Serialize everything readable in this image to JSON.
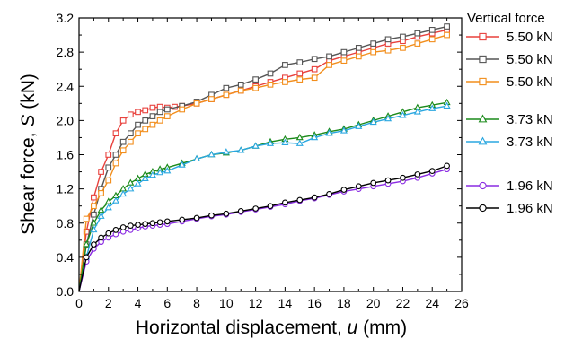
{
  "chart_data": {
    "type": "line",
    "xlabel_prefix": "Horizontal displacement, ",
    "xlabel_var": "u",
    "xlabel_unit": " (mm)",
    "ylabel_prefix": "Shear force, ",
    "ylabel_var": "S",
    "ylabel_unit": " (kN)",
    "xlim": [
      0,
      26
    ],
    "ylim": [
      0,
      3.2
    ],
    "xticks": [
      0,
      2,
      4,
      6,
      8,
      10,
      12,
      14,
      16,
      18,
      20,
      22,
      24,
      26
    ],
    "yticks": [
      0.0,
      0.4,
      0.8,
      1.2,
      1.6,
      2.0,
      2.4,
      2.8,
      3.2
    ],
    "ytick_labels": [
      "0.0",
      "0.4",
      "0.8",
      "1.2",
      "1.6",
      "2.0",
      "2.4",
      "2.8",
      "3.2"
    ],
    "legend_title": "Vertical force",
    "legend_placement": "right",
    "grid": false,
    "series": [
      {
        "name": "5.50 kN",
        "color": "#e8403c",
        "marker": "square",
        "points": [
          [
            0,
            0
          ],
          [
            0.5,
            0.7
          ],
          [
            1.0,
            1.1
          ],
          [
            1.5,
            1.4
          ],
          [
            2.0,
            1.6
          ],
          [
            2.5,
            1.85
          ],
          [
            3.0,
            2.0
          ],
          [
            3.5,
            2.07
          ],
          [
            4.0,
            2.1
          ],
          [
            4.5,
            2.12
          ],
          [
            5.0,
            2.15
          ],
          [
            5.5,
            2.16
          ],
          [
            6.0,
            2.15
          ],
          [
            6.5,
            2.16
          ],
          [
            7.0,
            2.17
          ],
          [
            8.0,
            2.2
          ],
          [
            9.0,
            2.25
          ],
          [
            10.0,
            2.3
          ],
          [
            11.0,
            2.35
          ],
          [
            12.0,
            2.4
          ],
          [
            13.0,
            2.45
          ],
          [
            14.0,
            2.5
          ],
          [
            15.0,
            2.55
          ],
          [
            16.0,
            2.6
          ],
          [
            17.0,
            2.7
          ],
          [
            18.0,
            2.75
          ],
          [
            19.0,
            2.8
          ],
          [
            20.0,
            2.85
          ],
          [
            21.0,
            2.9
          ],
          [
            22.0,
            2.93
          ],
          [
            23.0,
            2.98
          ],
          [
            24.0,
            3.02
          ],
          [
            25.0,
            3.06
          ]
        ]
      },
      {
        "name": "5.50 kN",
        "color": "#555555",
        "marker": "square",
        "points": [
          [
            0,
            0
          ],
          [
            0.5,
            0.55
          ],
          [
            1.0,
            0.9
          ],
          [
            1.5,
            1.2
          ],
          [
            2.0,
            1.45
          ],
          [
            2.5,
            1.6
          ],
          [
            3.0,
            1.75
          ],
          [
            3.5,
            1.85
          ],
          [
            4.0,
            1.95
          ],
          [
            4.5,
            2.0
          ],
          [
            5.0,
            2.05
          ],
          [
            5.5,
            2.1
          ],
          [
            6.0,
            2.13
          ],
          [
            7.0,
            2.17
          ],
          [
            8.0,
            2.22
          ],
          [
            9.0,
            2.3
          ],
          [
            10.0,
            2.38
          ],
          [
            11.0,
            2.42
          ],
          [
            12.0,
            2.48
          ],
          [
            13.0,
            2.55
          ],
          [
            14.0,
            2.65
          ],
          [
            15.0,
            2.68
          ],
          [
            16.0,
            2.72
          ],
          [
            17.0,
            2.75
          ],
          [
            18.0,
            2.8
          ],
          [
            19.0,
            2.85
          ],
          [
            20.0,
            2.9
          ],
          [
            21.0,
            2.95
          ],
          [
            22.0,
            2.98
          ],
          [
            23.0,
            3.02
          ],
          [
            24.0,
            3.06
          ],
          [
            25.0,
            3.1
          ]
        ]
      },
      {
        "name": "5.50 kN",
        "color": "#f28e1c",
        "marker": "square",
        "points": [
          [
            0,
            0
          ],
          [
            0.5,
            0.85
          ],
          [
            1.0,
            1.0
          ],
          [
            1.5,
            1.15
          ],
          [
            2.0,
            1.3
          ],
          [
            2.5,
            1.5
          ],
          [
            3.0,
            1.65
          ],
          [
            3.5,
            1.75
          ],
          [
            4.0,
            1.85
          ],
          [
            4.5,
            1.9
          ],
          [
            5.0,
            1.95
          ],
          [
            5.5,
            2.0
          ],
          [
            6.0,
            2.05
          ],
          [
            7.0,
            2.13
          ],
          [
            8.0,
            2.2
          ],
          [
            9.0,
            2.25
          ],
          [
            10.0,
            2.3
          ],
          [
            11.0,
            2.35
          ],
          [
            12.0,
            2.38
          ],
          [
            13.0,
            2.42
          ],
          [
            14.0,
            2.45
          ],
          [
            15.0,
            2.48
          ],
          [
            16.0,
            2.5
          ],
          [
            17.0,
            2.65
          ],
          [
            18.0,
            2.7
          ],
          [
            19.0,
            2.75
          ],
          [
            20.0,
            2.8
          ],
          [
            21.0,
            2.82
          ],
          [
            22.0,
            2.85
          ],
          [
            23.0,
            2.9
          ],
          [
            24.0,
            2.95
          ],
          [
            25.0,
            3.0
          ]
        ]
      },
      {
        "name": "3.73 kN",
        "color": "#1a8a1a",
        "marker": "triangle",
        "points": [
          [
            0,
            0
          ],
          [
            0.5,
            0.55
          ],
          [
            1.0,
            0.8
          ],
          [
            1.5,
            0.95
          ],
          [
            2.0,
            1.05
          ],
          [
            2.5,
            1.12
          ],
          [
            3.0,
            1.2
          ],
          [
            3.5,
            1.27
          ],
          [
            4.0,
            1.32
          ],
          [
            4.5,
            1.37
          ],
          [
            5.0,
            1.4
          ],
          [
            5.5,
            1.43
          ],
          [
            6.0,
            1.45
          ],
          [
            7.0,
            1.5
          ],
          [
            8.0,
            1.55
          ],
          [
            9.0,
            1.6
          ],
          [
            10.0,
            1.62
          ],
          [
            11.0,
            1.65
          ],
          [
            12.0,
            1.7
          ],
          [
            13.0,
            1.75
          ],
          [
            14.0,
            1.78
          ],
          [
            15.0,
            1.8
          ],
          [
            16.0,
            1.83
          ],
          [
            17.0,
            1.87
          ],
          [
            18.0,
            1.9
          ],
          [
            19.0,
            1.95
          ],
          [
            20.0,
            2.0
          ],
          [
            21.0,
            2.05
          ],
          [
            22.0,
            2.1
          ],
          [
            23.0,
            2.15
          ],
          [
            24.0,
            2.18
          ],
          [
            25.0,
            2.21
          ]
        ]
      },
      {
        "name": "3.73 kN",
        "color": "#2aa7e0",
        "marker": "triangle",
        "points": [
          [
            0,
            0
          ],
          [
            0.5,
            0.4
          ],
          [
            1.0,
            0.72
          ],
          [
            1.5,
            0.88
          ],
          [
            2.0,
            0.98
          ],
          [
            2.5,
            1.06
          ],
          [
            3.0,
            1.14
          ],
          [
            3.5,
            1.2
          ],
          [
            4.0,
            1.26
          ],
          [
            4.5,
            1.32
          ],
          [
            5.0,
            1.36
          ],
          [
            5.5,
            1.39
          ],
          [
            6.0,
            1.41
          ],
          [
            7.0,
            1.48
          ],
          [
            8.0,
            1.55
          ],
          [
            9.0,
            1.6
          ],
          [
            10.0,
            1.63
          ],
          [
            11.0,
            1.65
          ],
          [
            12.0,
            1.7
          ],
          [
            13.0,
            1.73
          ],
          [
            14.0,
            1.74
          ],
          [
            15.0,
            1.73
          ],
          [
            16.0,
            1.8
          ],
          [
            17.0,
            1.85
          ],
          [
            18.0,
            1.88
          ],
          [
            19.0,
            1.93
          ],
          [
            20.0,
            1.98
          ],
          [
            21.0,
            2.02
          ],
          [
            22.0,
            2.06
          ],
          [
            23.0,
            2.1
          ],
          [
            24.0,
            2.14
          ],
          [
            25.0,
            2.17
          ]
        ]
      },
      {
        "name": "1.96 kN",
        "color": "#8a2be2",
        "marker": "circle",
        "points": [
          [
            0,
            0
          ],
          [
            0.5,
            0.35
          ],
          [
            1.0,
            0.5
          ],
          [
            1.5,
            0.58
          ],
          [
            2.0,
            0.63
          ],
          [
            2.5,
            0.67
          ],
          [
            3.0,
            0.7
          ],
          [
            3.5,
            0.72
          ],
          [
            4.0,
            0.74
          ],
          [
            4.5,
            0.76
          ],
          [
            5.0,
            0.77
          ],
          [
            5.5,
            0.78
          ],
          [
            6.0,
            0.79
          ],
          [
            7.0,
            0.82
          ],
          [
            8.0,
            0.85
          ],
          [
            9.0,
            0.88
          ],
          [
            10.0,
            0.9
          ],
          [
            11.0,
            0.93
          ],
          [
            12.0,
            0.96
          ],
          [
            13.0,
            0.99
          ],
          [
            14.0,
            1.02
          ],
          [
            15.0,
            1.06
          ],
          [
            16.0,
            1.09
          ],
          [
            17.0,
            1.13
          ],
          [
            18.0,
            1.17
          ],
          [
            19.0,
            1.2
          ],
          [
            20.0,
            1.23
          ],
          [
            21.0,
            1.26
          ],
          [
            22.0,
            1.29
          ],
          [
            23.0,
            1.33
          ],
          [
            24.0,
            1.38
          ],
          [
            25.0,
            1.43
          ]
        ]
      },
      {
        "name": "1.96 kN",
        "color": "#000000",
        "marker": "circle",
        "points": [
          [
            0,
            0
          ],
          [
            0.5,
            0.4
          ],
          [
            1.0,
            0.55
          ],
          [
            1.5,
            0.63
          ],
          [
            2.0,
            0.68
          ],
          [
            2.5,
            0.72
          ],
          [
            3.0,
            0.75
          ],
          [
            3.5,
            0.77
          ],
          [
            4.0,
            0.78
          ],
          [
            4.5,
            0.79
          ],
          [
            5.0,
            0.8
          ],
          [
            5.5,
            0.81
          ],
          [
            6.0,
            0.82
          ],
          [
            7.0,
            0.84
          ],
          [
            8.0,
            0.86
          ],
          [
            9.0,
            0.89
          ],
          [
            10.0,
            0.91
          ],
          [
            11.0,
            0.94
          ],
          [
            12.0,
            0.97
          ],
          [
            13.0,
            1.0
          ],
          [
            14.0,
            1.04
          ],
          [
            15.0,
            1.07
          ],
          [
            16.0,
            1.1
          ],
          [
            17.0,
            1.14
          ],
          [
            18.0,
            1.19
          ],
          [
            19.0,
            1.23
          ],
          [
            20.0,
            1.27
          ],
          [
            21.0,
            1.3
          ],
          [
            22.0,
            1.33
          ],
          [
            23.0,
            1.37
          ],
          [
            24.0,
            1.41
          ],
          [
            25.0,
            1.47
          ]
        ]
      }
    ]
  }
}
